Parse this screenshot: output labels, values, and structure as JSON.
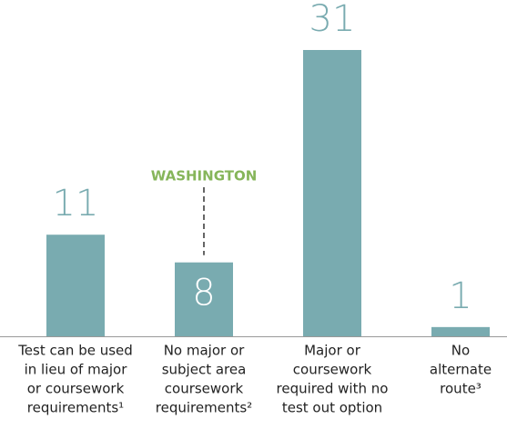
{
  "chart_data": {
    "type": "bar",
    "categories": [
      [
        "Test can be used",
        "in lieu of major",
        "or coursework",
        "requirements¹"
      ],
      [
        "No major or",
        "subject area",
        "coursework",
        "requirements²"
      ],
      [
        "Major or",
        "coursework",
        "required with no",
        "test out option"
      ],
      [
        "No",
        "alternate",
        "route³"
      ]
    ],
    "values": [
      11,
      8,
      31,
      1
    ],
    "color": "#79abb0",
    "ylim": [
      0,
      31
    ],
    "annotation": "WASHINGTON",
    "annotation_color": "#86b55a"
  }
}
